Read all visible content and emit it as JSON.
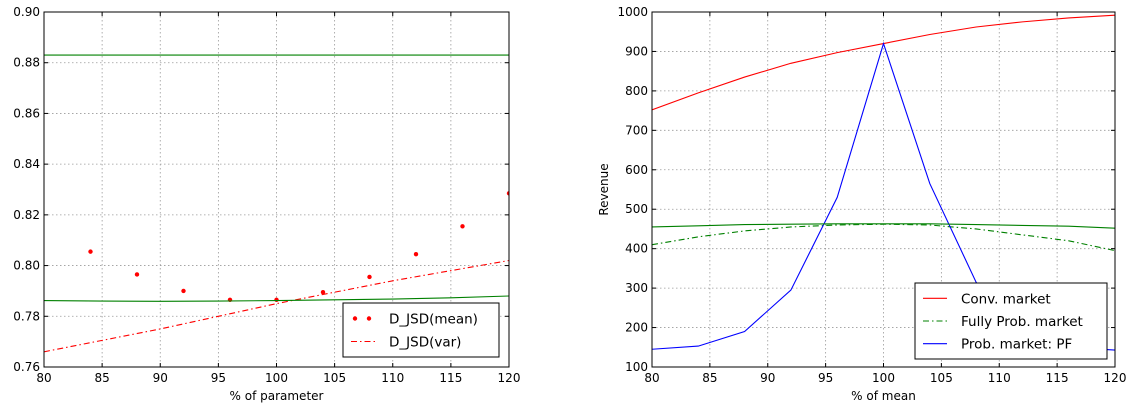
{
  "chart_data": [
    {
      "type": "scatter",
      "title": "",
      "xlabel": "% of parameter",
      "ylabel": "",
      "xlim": [
        80,
        120
      ],
      "ylim": [
        0.76,
        0.9
      ],
      "xticks": [
        80,
        85,
        90,
        95,
        100,
        105,
        110,
        115,
        120
      ],
      "yticks": [
        0.76,
        0.78,
        0.8,
        0.82,
        0.84,
        0.86,
        0.88,
        0.9
      ],
      "xtick_labels": [
        "80",
        "85",
        "90",
        "95",
        "100",
        "105",
        "110",
        "115",
        "120"
      ],
      "ytick_labels": [
        "0.76",
        "0.78",
        "0.80",
        "0.82",
        "0.84",
        "0.86",
        "0.88",
        "0.90"
      ],
      "grid": true,
      "legend_position": "bottom-right",
      "series": [
        {
          "name": "D_JSD(mean)",
          "style": "dots",
          "color": "#ff0000",
          "x": [
            84,
            88,
            92,
            96,
            100,
            104,
            108,
            112,
            116,
            120
          ],
          "y": [
            0.8055,
            0.7965,
            0.79,
            0.7865,
            0.7865,
            0.7895,
            0.7955,
            0.8045,
            0.8155,
            0.8285
          ]
        },
        {
          "name": "D_JSD(var)",
          "style": "dashdot",
          "color": "#ff0000",
          "x": [
            80,
            90,
            100,
            110,
            120
          ],
          "y": [
            0.766,
            0.775,
            0.785,
            0.794,
            0.802
          ]
        },
        {
          "name": "",
          "style": "solid",
          "color": "#008000",
          "x": [
            80,
            90,
            100,
            110,
            120
          ],
          "y": [
            0.883,
            0.883,
            0.883,
            0.883,
            0.883
          ]
        },
        {
          "name": "",
          "style": "solid",
          "color": "#008000",
          "x": [
            80,
            85,
            90,
            95,
            100,
            105,
            110,
            115,
            120
          ],
          "y": [
            0.7862,
            0.786,
            0.7859,
            0.786,
            0.7862,
            0.7865,
            0.7868,
            0.7873,
            0.788
          ]
        }
      ]
    },
    {
      "type": "line",
      "title": "",
      "xlabel": "% of mean",
      "ylabel": "Revenue",
      "xlim": [
        80,
        120
      ],
      "ylim": [
        100,
        1000
      ],
      "xticks": [
        80,
        85,
        90,
        95,
        100,
        105,
        110,
        115,
        120
      ],
      "yticks": [
        100,
        200,
        300,
        400,
        500,
        600,
        700,
        800,
        900,
        1000
      ],
      "xtick_labels": [
        "80",
        "85",
        "90",
        "95",
        "100",
        "105",
        "110",
        "115",
        "120"
      ],
      "ytick_labels": [
        "100",
        "200",
        "300",
        "400",
        "500",
        "600",
        "700",
        "800",
        "900",
        "1000"
      ],
      "grid": true,
      "legend_position": "bottom-right",
      "series": [
        {
          "name": "Conv. market",
          "style": "solid",
          "color": "#ff0000",
          "x": [
            80,
            84,
            88,
            92,
            96,
            100,
            104,
            108,
            112,
            116,
            120
          ],
          "y": [
            752,
            795,
            835,
            870,
            897,
            920,
            943,
            962,
            975,
            985,
            992
          ]
        },
        {
          "name": "Fully Prob. market",
          "style": "dashdot",
          "color": "#008000",
          "x": [
            80,
            84,
            88,
            92,
            96,
            100,
            104,
            108,
            112,
            116,
            120
          ],
          "y": [
            410,
            430,
            445,
            455,
            460,
            462,
            460,
            450,
            435,
            420,
            395
          ]
        },
        {
          "name": "Prob. market: PF",
          "style": "solid",
          "color": "#0000ff",
          "x": [
            80,
            84,
            88,
            92,
            96,
            100,
            104,
            108,
            112,
            116,
            120
          ],
          "y": [
            145,
            153,
            190,
            295,
            530,
            920,
            565,
            315,
            185,
            150,
            143
          ]
        },
        {
          "name": "",
          "style": "solid",
          "color": "#008000",
          "x": [
            80,
            84,
            88,
            92,
            96,
            100,
            104,
            108,
            112,
            116,
            120
          ],
          "y": [
            455,
            458,
            461,
            462,
            463,
            463,
            463,
            461,
            459,
            457,
            452
          ]
        }
      ]
    }
  ]
}
